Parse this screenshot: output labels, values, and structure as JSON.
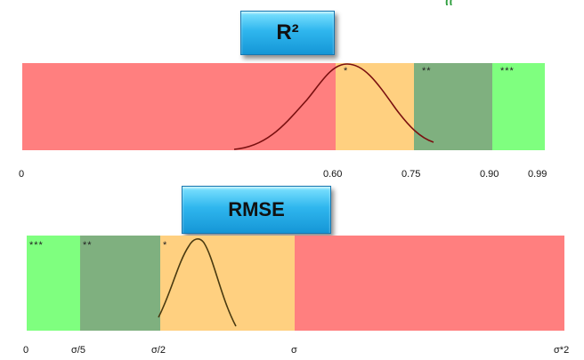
{
  "colors": {
    "poor": "#ff7f7f",
    "fair": "#ffd080",
    "good": "#7fb07f",
    "excellent": "#7fff7f",
    "badge": "#2fb6ee",
    "r2_curve": "#7a1010",
    "rmse_curve": "#4a3a10"
  },
  "r2_panel": {
    "title": "R²",
    "ticks": [
      "0",
      "0.60",
      "0.75",
      "0.90",
      "0.99"
    ],
    "bands": [
      {
        "category": "poor",
        "stars": ""
      },
      {
        "category": "fair",
        "stars": "*"
      },
      {
        "category": "good",
        "stars": "**"
      },
      {
        "category": "excellent",
        "stars": "***"
      }
    ]
  },
  "rmse_panel": {
    "title": "RMSE",
    "ticks": [
      "0",
      "σ/5",
      "σ/2",
      "σ",
      "σ*2"
    ],
    "bands": [
      {
        "category": "excellent",
        "stars": "***"
      },
      {
        "category": "good",
        "stars": "**"
      },
      {
        "category": "fair",
        "stars": "*"
      },
      {
        "category": "poor",
        "stars": ""
      }
    ]
  }
}
